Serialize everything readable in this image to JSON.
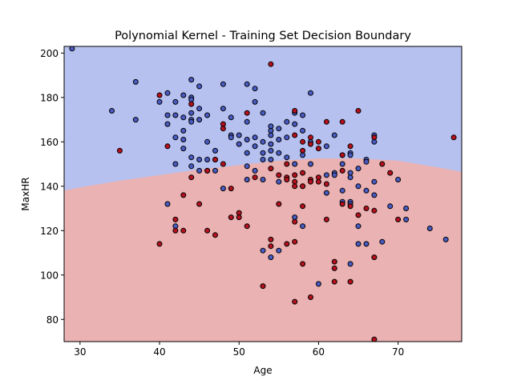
{
  "chart_data": {
    "type": "scatter",
    "title": "Polynomial Kernel - Training Set Decision Boundary",
    "xlabel": "Age",
    "ylabel": "MaxHR",
    "xlim": [
      28,
      78
    ],
    "ylim": [
      70,
      203
    ],
    "x_ticks": [
      30,
      40,
      50,
      60,
      70
    ],
    "y_ticks": [
      80,
      100,
      120,
      140,
      160,
      180,
      200
    ],
    "grid": false,
    "legend": "none",
    "colors": {
      "region_class0": "#b7c1f0",
      "region_class1": "#eab2b2",
      "point_class0": "#4a5bc4",
      "point_class1": "#b5101e"
    },
    "decision_boundary": {
      "x": [
        28,
        30,
        35,
        40,
        45,
        50,
        55,
        60,
        65,
        70,
        75,
        78
      ],
      "y": [
        138,
        139.5,
        142.5,
        145,
        147.5,
        149.5,
        151.5,
        152.5,
        152.5,
        151.5,
        148.5,
        146.5
      ]
    },
    "series": [
      {
        "class": 0,
        "points": [
          [
            29,
            202
          ],
          [
            34,
            174
          ],
          [
            37,
            187
          ],
          [
            37,
            170
          ],
          [
            40,
            178
          ],
          [
            41,
            182
          ],
          [
            41,
            172
          ],
          [
            41,
            168
          ],
          [
            41,
            132
          ],
          [
            42,
            178
          ],
          [
            42,
            172
          ],
          [
            42,
            162
          ],
          [
            42,
            150
          ],
          [
            42,
            122
          ],
          [
            43,
            181
          ],
          [
            43,
            171
          ],
          [
            43,
            165
          ],
          [
            43,
            161
          ],
          [
            43,
            157
          ],
          [
            44,
            188
          ],
          [
            44,
            180
          ],
          [
            44,
            179
          ],
          [
            44,
            173
          ],
          [
            44,
            170
          ],
          [
            44,
            169
          ],
          [
            44,
            153
          ],
          [
            44,
            149
          ],
          [
            45,
            185
          ],
          [
            45,
            175
          ],
          [
            45,
            170
          ],
          [
            45,
            152
          ],
          [
            45,
            147
          ],
          [
            46,
            172
          ],
          [
            46,
            160
          ],
          [
            46,
            152
          ],
          [
            46,
            147
          ],
          [
            47,
            156
          ],
          [
            47,
            152
          ],
          [
            47,
            147
          ],
          [
            48,
            186
          ],
          [
            48,
            175
          ],
          [
            48,
            139
          ],
          [
            49,
            171
          ],
          [
            49,
            163
          ],
          [
            49,
            162
          ],
          [
            50,
            163
          ],
          [
            50,
            159
          ],
          [
            51,
            186
          ],
          [
            51,
            169
          ],
          [
            51,
            161
          ],
          [
            51,
            155
          ],
          [
            51,
            149
          ],
          [
            51,
            143
          ],
          [
            52,
            184
          ],
          [
            52,
            178
          ],
          [
            52,
            162
          ],
          [
            52,
            158
          ],
          [
            52,
            147
          ],
          [
            53,
            173
          ],
          [
            53,
            160
          ],
          [
            53,
            155
          ],
          [
            53,
            152
          ],
          [
            53,
            143
          ],
          [
            53,
            111
          ],
          [
            54,
            167
          ],
          [
            54,
            165
          ],
          [
            54,
            163
          ],
          [
            54,
            159
          ],
          [
            54,
            156
          ],
          [
            54,
            152
          ],
          [
            54,
            108
          ],
          [
            55,
            166
          ],
          [
            55,
            161
          ],
          [
            55,
            155
          ],
          [
            55,
            142
          ],
          [
            55,
            111
          ],
          [
            56,
            169
          ],
          [
            56,
            162
          ],
          [
            56,
            153
          ],
          [
            57,
            173
          ],
          [
            57,
            168
          ],
          [
            57,
            150
          ],
          [
            57,
            126
          ],
          [
            58,
            172
          ],
          [
            58,
            165
          ],
          [
            58,
            154
          ],
          [
            58,
            140
          ],
          [
            58,
            122
          ],
          [
            59,
            182
          ],
          [
            59,
            160
          ],
          [
            59,
            150
          ],
          [
            60,
            96
          ],
          [
            61,
            158
          ],
          [
            61,
            145
          ],
          [
            61,
            137
          ],
          [
            62,
            163
          ],
          [
            62,
            146
          ],
          [
            62,
            145
          ],
          [
            63,
            154
          ],
          [
            63,
            150
          ],
          [
            63,
            138
          ],
          [
            63,
            133
          ],
          [
            64,
            155
          ],
          [
            64,
            154
          ],
          [
            64,
            146
          ],
          [
            64,
            144
          ],
          [
            64,
            133
          ],
          [
            64,
            132
          ],
          [
            64,
            105
          ],
          [
            65,
            148
          ],
          [
            65,
            140
          ],
          [
            65,
            122
          ],
          [
            65,
            114
          ],
          [
            66,
            152
          ],
          [
            66,
            151
          ],
          [
            66,
            138
          ],
          [
            66,
            114
          ],
          [
            67,
            163
          ],
          [
            67,
            160
          ],
          [
            67,
            142
          ],
          [
            67,
            136
          ],
          [
            68,
            115
          ],
          [
            69,
            131
          ],
          [
            70,
            143
          ],
          [
            71,
            130
          ],
          [
            71,
            125
          ],
          [
            74,
            121
          ],
          [
            76,
            116
          ]
        ]
      },
      {
        "class": 1,
        "points": [
          [
            35,
            156
          ],
          [
            40,
            181
          ],
          [
            40,
            114
          ],
          [
            41,
            158
          ],
          [
            42,
            125
          ],
          [
            42,
            120
          ],
          [
            43,
            136
          ],
          [
            43,
            120
          ],
          [
            44,
            177
          ],
          [
            44,
            144
          ],
          [
            45,
            132
          ],
          [
            46,
            147
          ],
          [
            46,
            120
          ],
          [
            47,
            152
          ],
          [
            47,
            118
          ],
          [
            48,
            168
          ],
          [
            48,
            166
          ],
          [
            48,
            150
          ],
          [
            49,
            139
          ],
          [
            49,
            126
          ],
          [
            50,
            128
          ],
          [
            50,
            126
          ],
          [
            51,
            173
          ],
          [
            51,
            122
          ],
          [
            52,
            144
          ],
          [
            53,
            95
          ],
          [
            54,
            195
          ],
          [
            54,
            148
          ],
          [
            54,
            116
          ],
          [
            54,
            113
          ],
          [
            55,
            145
          ],
          [
            55,
            132
          ],
          [
            56,
            150
          ],
          [
            56,
            144
          ],
          [
            56,
            143
          ],
          [
            56,
            114
          ],
          [
            57,
            174
          ],
          [
            57,
            163
          ],
          [
            57,
            145
          ],
          [
            57,
            142
          ],
          [
            57,
            140
          ],
          [
            57,
            124
          ],
          [
            57,
            115
          ],
          [
            57,
            88
          ],
          [
            58,
            160
          ],
          [
            58,
            156
          ],
          [
            58,
            146
          ],
          [
            58,
            140
          ],
          [
            58,
            131
          ],
          [
            58,
            105
          ],
          [
            59,
            162
          ],
          [
            59,
            159
          ],
          [
            59,
            143
          ],
          [
            59,
            142
          ],
          [
            59,
            90
          ],
          [
            60,
            160
          ],
          [
            60,
            157
          ],
          [
            60,
            144
          ],
          [
            60,
            142
          ],
          [
            61,
            169
          ],
          [
            61,
            141
          ],
          [
            61,
            125
          ],
          [
            62,
            106
          ],
          [
            62,
            103
          ],
          [
            62,
            97
          ],
          [
            63,
            169
          ],
          [
            63,
            154
          ],
          [
            63,
            147
          ],
          [
            63,
            132
          ],
          [
            64,
            158
          ],
          [
            64,
            131
          ],
          [
            64,
            97
          ],
          [
            65,
            174
          ],
          [
            65,
            127
          ],
          [
            66,
            130
          ],
          [
            67,
            162
          ],
          [
            67,
            129
          ],
          [
            67,
            108
          ],
          [
            67,
            71
          ],
          [
            68,
            150
          ],
          [
            69,
            146
          ],
          [
            70,
            125
          ],
          [
            77,
            162
          ]
        ]
      }
    ]
  }
}
